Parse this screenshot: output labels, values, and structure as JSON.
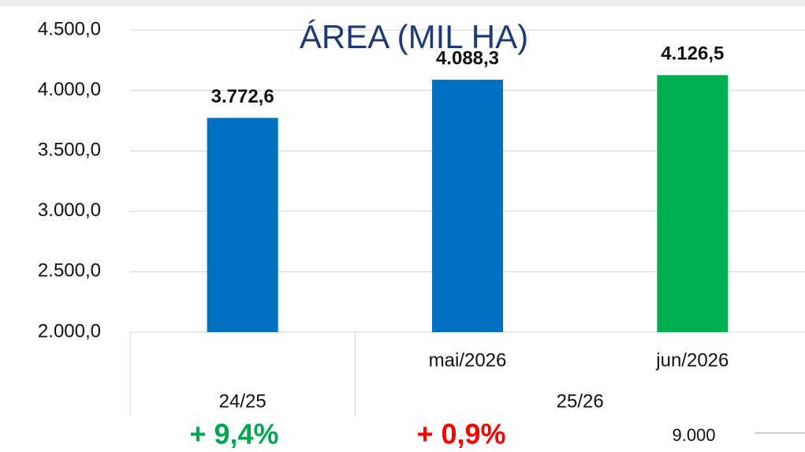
{
  "chart_data": {
    "type": "bar",
    "title": "ÁREA (MIL HA)",
    "categories": [
      null,
      "mai/2026",
      "jun/2026"
    ],
    "groups": [
      "24/25",
      "25/26"
    ],
    "values": [
      3772.6,
      4088.3,
      4126.5
    ],
    "value_labels": [
      "3.772,6",
      "4.088,3",
      "4.126,5"
    ],
    "colors": [
      "#0070c0",
      "#0070c0",
      "#00b050"
    ],
    "ylim": [
      2000,
      4500
    ],
    "yticks": [
      {
        "value": 2000,
        "label": "2.000,0"
      },
      {
        "value": 2500,
        "label": "2.500,0"
      },
      {
        "value": 3000,
        "label": "3.000,0"
      },
      {
        "value": 3500,
        "label": "3.500,0"
      },
      {
        "value": 4000,
        "label": "4.000,0"
      },
      {
        "value": 4500,
        "label": "4.500,0"
      }
    ],
    "grid": true,
    "annotations": [
      {
        "text": "+ 9,4%",
        "color": "#00a650"
      },
      {
        "text": "+ 0,9%",
        "color": "#ff0000"
      },
      {
        "text": "9.000",
        "color": "#111111"
      }
    ]
  }
}
